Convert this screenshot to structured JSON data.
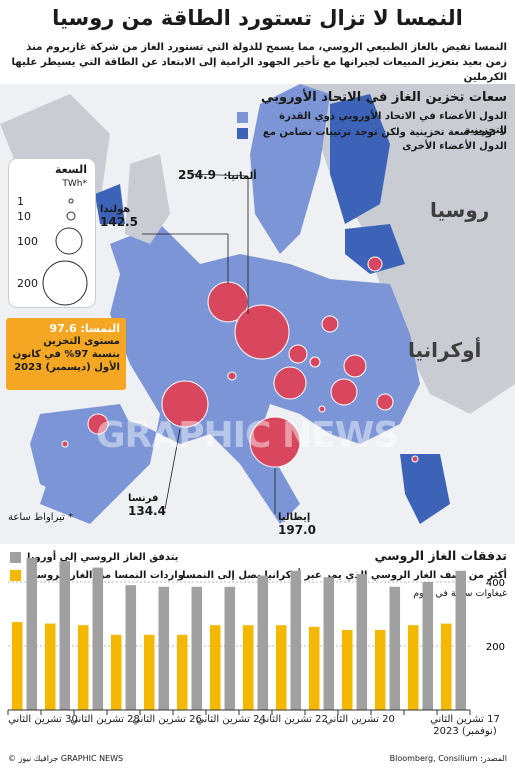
{
  "title": "النمسا لا تزال تستورد الطاقة من روسيا",
  "intro": "النمسا تفيض بالغاز الطبيعي الروسي، مما يسمح للدولة التي تستورد الغاز من شركة غازبروم منذ زمن بعيد بتعزيز المبيعات لجيرانها مع تأخير الجهود الرامية إلى الابتعاد عن الطاقة التي يسيطر عليها الكرملين",
  "map": {
    "section_title": "سعات تخزين الغاز في الاتحاد الأوروبي",
    "legend": [
      {
        "label": "الدول الأعضاء في الاتحاد الأوروبي ذوي القدرة التخزينية",
        "color": "#7b95d6"
      },
      {
        "label": "لا توجد سعة تخزينية ولكن توجد ترتيبات تضامن مع الدول الأعضاء الأخرى",
        "color": "#3d63b8"
      }
    ],
    "capacity_legend": {
      "title": "السعة",
      "unit": "TWh*",
      "sizes": [
        "1",
        "10",
        "100",
        "200"
      ]
    },
    "countries": {
      "russia": "روسيا",
      "ukraine": "أوكرانيا"
    },
    "callouts": {
      "germany": {
        "name": "ألمانيا:",
        "value": "254.9"
      },
      "netherlands": {
        "name": "هولندا",
        "value": "142.5"
      },
      "france": {
        "name": "فرنسا",
        "value": "134.4"
      },
      "italy": {
        "name": "إيطاليا",
        "value": "197.0"
      }
    },
    "austria": {
      "title": "النمسا: 97.6",
      "text": "مستوى التخزين بنسبة 97% في كانون الأول (ديسمبر) 2023"
    },
    "unit_note": "* تيراواط ساعة",
    "watermark": "GRAPHIC NEWS",
    "colors": {
      "member": "#7b95d6",
      "solidarity": "#3d63b8",
      "bubble": "#d9475f",
      "nonEU": "#c9ccd2",
      "sea": "#eef0f3"
    }
  },
  "flows": {
    "section_title": "تدفقات الغاز الروسي",
    "subtitle": "أكثر من نصف الغاز الروسي الذي يمر عبر أوكرانيا يصل إلى النمسا",
    "unit": "غيغاوات ساعة في اليوم",
    "legend": [
      {
        "label": "يتدفق الغاز الروسي إلى أوروبا",
        "color": "#a0a0a0"
      },
      {
        "label": "واردات النمسا من الغاز الروسي",
        "color": "#f5b800"
      }
    ],
    "x_labels": [
      "17 تشرين الثاني (نوفمبر) 2023",
      "20 تشرين الثاني",
      "22 تشرين الثاني",
      "24 تشرين الثاني",
      "26 تشرين الثاني",
      "28 تشرين الثاني",
      "30 تشرين الثاني"
    ]
  },
  "chart_data": {
    "type": "bar",
    "title": "تدفقات الغاز الروسي",
    "ylabel": "غيغاوات ساعة في اليوم",
    "y_ticks": [
      200,
      400
    ],
    "ylim": [
      0,
      500
    ],
    "categories": [
      "17",
      "18",
      "19",
      "20",
      "21",
      "22",
      "23",
      "24",
      "25",
      "26",
      "27",
      "28",
      "29",
      "30"
    ],
    "series": [
      {
        "name": "يتدفق الغاز الروسي إلى أوروبا",
        "color": "#a0a0a0",
        "values": [
          435,
          400,
          385,
          425,
          415,
          435,
          420,
          385,
          385,
          385,
          390,
          445,
          465,
          475
        ]
      },
      {
        "name": "واردات النمسا من الغاز الروسي",
        "color": "#f5b800",
        "values": [
          270,
          265,
          250,
          250,
          260,
          265,
          265,
          265,
          235,
          235,
          235,
          265,
          270,
          275
        ]
      }
    ]
  },
  "footer": {
    "source": "المصدر: Bloomberg, Consilium",
    "credit": "© جرافيك نيوز GRAPHIC NEWS"
  }
}
